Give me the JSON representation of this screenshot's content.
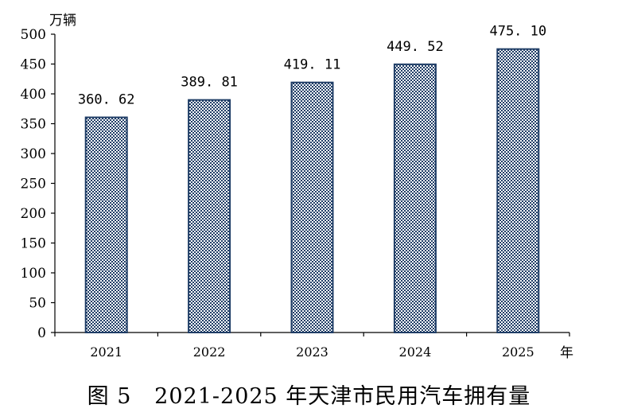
{
  "figure_caption": "图 5   2021-2025 年天津市民用汽车拥有量",
  "colors": {
    "bar_fill": "#1f3d66",
    "bar_pattern_bg": "#ffffff",
    "axis": "#000000",
    "text": "#000000"
  },
  "chart_data": {
    "type": "bar",
    "categories": [
      "2021",
      "2022",
      "2023",
      "2024",
      "2025"
    ],
    "values": [
      360.62,
      389.81,
      419.11,
      449.52,
      475.1
    ],
    "data_labels": [
      "360. 62",
      "389. 81",
      "419. 11",
      "449. 52",
      "475. 10"
    ],
    "y_unit_label": "万辆",
    "x_unit_label": "年",
    "ylim": [
      0,
      500
    ],
    "y_ticks": [
      0,
      50,
      100,
      150,
      200,
      250,
      300,
      350,
      400,
      450,
      500
    ],
    "grid": false,
    "legend": "none"
  }
}
